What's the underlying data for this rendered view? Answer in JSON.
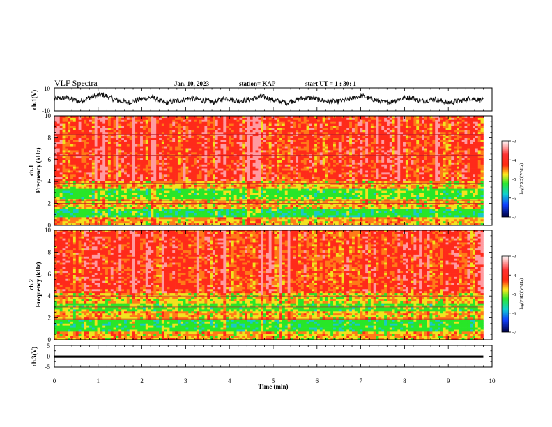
{
  "header": {
    "title": "VLF Spectra",
    "date": "Jan. 10, 2023",
    "station": "station= KAP",
    "start_ut": "start UT =  1 : 30: 1"
  },
  "colors": {
    "waveform": "#111111",
    "ch3_band": "#000000",
    "spectrogram_high": "#ff2a1a",
    "spectrogram_mid": "#f2e31e",
    "spectrogram_low": "#28e628"
  },
  "chart_data": [
    {
      "type": "line",
      "id": "ch1_waveform",
      "ylabel": "ch.1(V)",
      "ylim": [
        -10,
        10
      ],
      "ytick_labels": [
        "10",
        "-10"
      ],
      "xlim": [
        0,
        10
      ],
      "xlabel": "",
      "x_extent": 9.8,
      "y_center": 0.5,
      "y_amplitude": 5,
      "series": [
        {
          "values": [
            2.6,
            3.4,
            0.2,
            4.1,
            6.0,
            1.3,
            -0.6,
            2.1,
            3.9,
            -1.2,
            0.8,
            2.9,
            1.4,
            -0.4,
            3.2,
            0.6,
            2.2,
            4.4,
            1.0,
            -0.8,
            2.5,
            3.3,
            0.9,
            -0.2,
            1.8,
            5.2,
            2.0,
            -1.0,
            1.6,
            3.8,
            0.4,
            2.7,
            -0.9,
            0.5,
            3.0,
            1.1
          ]
        }
      ]
    },
    {
      "type": "heatmap",
      "id": "ch1_spectrogram",
      "ylabel": "ch.1\nFrequency (kHz)",
      "ylim": [
        0,
        10
      ],
      "ytick_labels": [
        "0",
        "2",
        "4",
        "6",
        "8",
        "10"
      ],
      "xlim": [
        0,
        10
      ],
      "x_extent": 9.8,
      "colorbar": {
        "label": "log(PSD)(V²/Hz)",
        "range": [
          -7,
          -3
        ],
        "tick_labels": [
          "-3",
          "-4",
          "-5",
          "-6",
          "-7"
        ]
      },
      "bands": [
        {
          "from_khz": 0.0,
          "to_khz": 0.8,
          "level": -4.5
        },
        {
          "from_khz": 0.8,
          "to_khz": 1.5,
          "level": -5.4
        },
        {
          "from_khz": 1.5,
          "to_khz": 2.4,
          "level": -4.6
        },
        {
          "from_khz": 2.4,
          "to_khz": 3.4,
          "level": -5.2
        },
        {
          "from_khz": 3.4,
          "to_khz": 4.1,
          "level": -4.5
        },
        {
          "from_khz": 4.1,
          "to_khz": 10.0,
          "level": -3.9
        }
      ],
      "lines_khz": [
        2.0,
        2.3,
        3.8,
        6.4,
        8.3
      ]
    },
    {
      "type": "heatmap",
      "id": "ch2_spectrogram",
      "ylabel": "ch.2\nFrequency (kHz)",
      "ylim": [
        0,
        10
      ],
      "ytick_labels": [
        "0",
        "2",
        "4",
        "6",
        "8",
        "10"
      ],
      "xlim": [
        0,
        10
      ],
      "x_extent": 9.8,
      "colorbar": {
        "label": "log(PSD)(V²/Hz)",
        "range": [
          -7,
          -3
        ],
        "tick_labels": [
          "-3",
          "-4",
          "-5",
          "-6",
          "-7"
        ]
      },
      "bands": [
        {
          "from_khz": 0.0,
          "to_khz": 0.8,
          "level": -4.5
        },
        {
          "from_khz": 0.8,
          "to_khz": 1.9,
          "level": -5.3
        },
        {
          "from_khz": 1.9,
          "to_khz": 2.6,
          "level": -4.5
        },
        {
          "from_khz": 2.6,
          "to_khz": 3.3,
          "level": -5.1
        },
        {
          "from_khz": 3.3,
          "to_khz": 4.3,
          "level": -4.6
        },
        {
          "from_khz": 4.3,
          "to_khz": 10.0,
          "level": -3.9
        }
      ],
      "lines_khz": [
        1.9,
        3.0,
        4.0
      ]
    },
    {
      "type": "line",
      "id": "ch3_waveform",
      "ylabel": "ch.3(V)",
      "ylim": [
        -5,
        5
      ],
      "ytick_labels": [
        "5",
        "0",
        "-5"
      ],
      "xlim": [
        0,
        10
      ],
      "x_extent": 9.8,
      "band": [
        -0.7,
        0.3
      ],
      "xlabel": "Time (min)",
      "xtick_labels": [
        "0",
        "1",
        "2",
        "3",
        "4",
        "5",
        "6",
        "7",
        "8",
        "9",
        "10"
      ]
    }
  ]
}
